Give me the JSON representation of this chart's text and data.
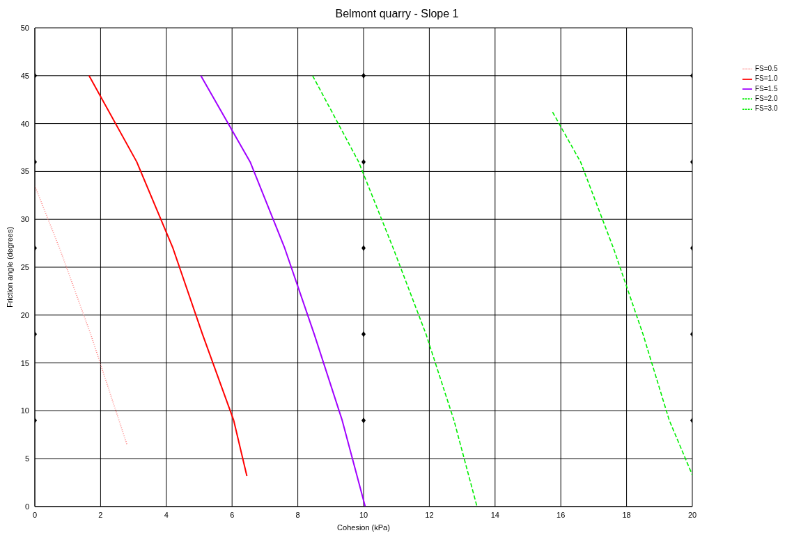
{
  "chart_data": {
    "type": "line",
    "title": "Belmont quarry - Slope 1",
    "xlabel": "Cohesion (kPa)",
    "ylabel": "Friction angle (degrees)",
    "xlim": [
      0,
      20
    ],
    "xticks": [
      0,
      2,
      4,
      6,
      8,
      10,
      12,
      14,
      16,
      18,
      20
    ],
    "ylim": [
      0,
      50
    ],
    "yticks": [
      0,
      5,
      10,
      15,
      20,
      25,
      30,
      35,
      40,
      45,
      50
    ],
    "grid": true,
    "legend": "top right",
    "marker": "none",
    "series": [
      {
        "name": "FS=0.5",
        "color": "#ff8080",
        "line_style": "dotted",
        "x": [
          0,
          0.75,
          1.7,
          2.8
        ],
        "values": [
          33.5,
          27,
          18,
          6.5
        ]
      },
      {
        "name": "FS=1.0",
        "color": "#ff0000",
        "line_style": "solid",
        "x": [
          1.65,
          3.1,
          4.2,
          5.1,
          6.05,
          6.45
        ],
        "values": [
          45,
          36,
          27,
          18,
          9,
          3.2
        ]
      },
      {
        "name": "FS=1.5",
        "color": "#a000ff",
        "line_style": "solid",
        "x": [
          5.05,
          6.55,
          7.6,
          8.5,
          9.35,
          10.05
        ],
        "values": [
          45,
          36,
          27,
          18,
          9,
          0
        ]
      },
      {
        "name": "FS=2.0",
        "color": "#00ee00",
        "line_style": "dashed",
        "x": [
          8.45,
          9.85,
          10.9,
          11.9,
          12.75,
          13.45
        ],
        "values": [
          45,
          36,
          27,
          18,
          9,
          0
        ]
      },
      {
        "name": "FS=3.0",
        "color": "#00ee00",
        "line_style": "dashed",
        "x": [
          15.75,
          16.6,
          17.6,
          18.5,
          19.3,
          20
        ],
        "values": [
          41.2,
          36,
          27,
          18,
          9,
          3.3
        ]
      },
      {
        "type": "scatter",
        "marker": "diamond",
        "color": "#000000",
        "x": [
          0,
          0,
          0,
          0,
          0,
          10,
          10,
          10,
          10,
          10,
          20,
          20,
          20,
          20,
          20
        ],
        "values": [
          9,
          18,
          27,
          36,
          45,
          9,
          18,
          27,
          36,
          45,
          9,
          18,
          27,
          36,
          45
        ]
      }
    ]
  }
}
